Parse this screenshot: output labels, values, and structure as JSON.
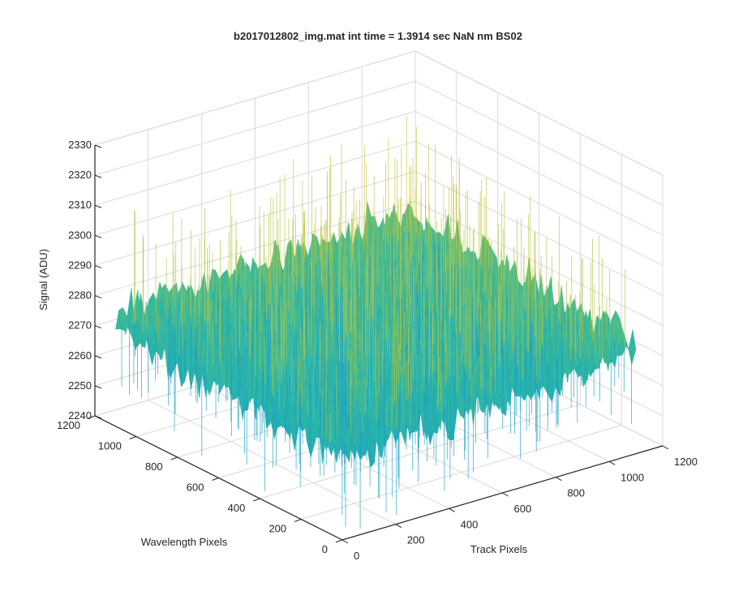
{
  "chart_data": {
    "type": "surface",
    "title": "b2017012802_img.mat int time = 1.3914 sec  NaN nm BS02",
    "xlabel": "Track Pixels",
    "ylabel": "Wavelength Pixels",
    "zlabel": "Signal (ADU)",
    "x_ticks": [
      0,
      200,
      400,
      600,
      800,
      1000,
      1200
    ],
    "y_ticks": [
      0,
      200,
      400,
      600,
      800,
      1000,
      1200
    ],
    "z_ticks": [
      2240,
      2250,
      2260,
      2270,
      2280,
      2290,
      2300,
      2310,
      2320,
      2330
    ],
    "xlim": [
      0,
      1200
    ],
    "ylim": [
      0,
      1200
    ],
    "zlim": [
      2240,
      2330
    ],
    "x_extent": [
      0,
      1100
    ],
    "y_extent": [
      0,
      1100
    ],
    "z_mean": 2275,
    "z_range_observed": [
      2245,
      2322
    ],
    "grid": true,
    "colormap": "parula",
    "colors": {
      "low": "#1a9fc8",
      "mid": "#2ab6a8",
      "high": "#e6c52c",
      "axis": "#262626",
      "grid": "#d9d9d9"
    }
  }
}
